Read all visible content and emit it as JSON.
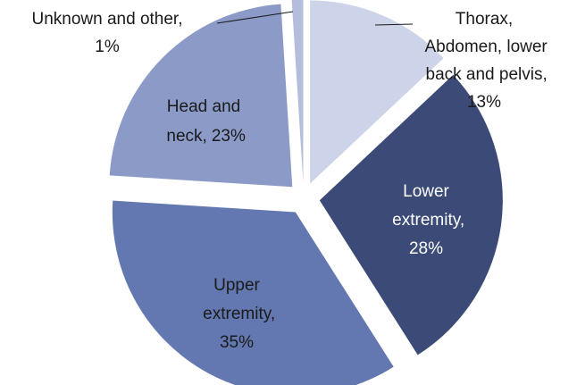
{
  "chart_data": {
    "type": "pie",
    "categories": [
      "Thorax, Abdomen, lower back and pelvis,",
      "Lower extremity,",
      "Upper extremity,",
      "Head and neck,",
      "Unknown and other,"
    ],
    "values": [
      13,
      28,
      35,
      23,
      1
    ],
    "value_labels": [
      "13%",
      "28%",
      "35%",
      "23%",
      "1%"
    ],
    "colors": [
      "#cdd3e8",
      "#3b4a77",
      "#6378b0",
      "#8c9ac8",
      "#b4bddc"
    ]
  }
}
